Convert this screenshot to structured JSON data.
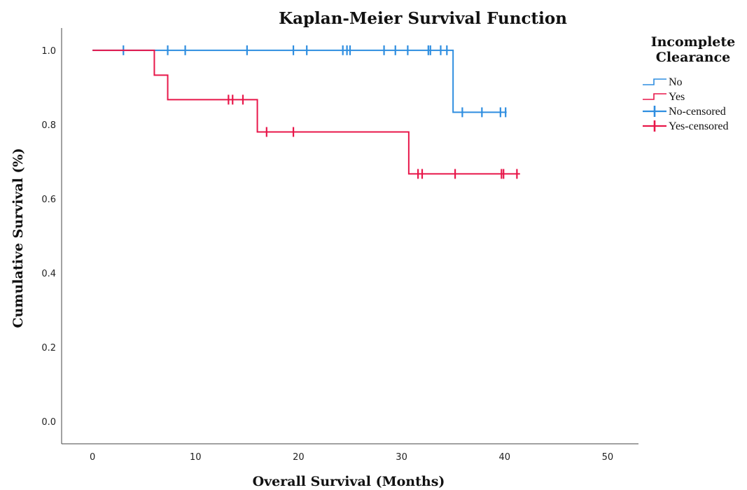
{
  "chart_data": {
    "type": "line",
    "title": "Kaplan-Meier Survival Function",
    "xlabel": "Overall Survival (Months)",
    "ylabel": "Cumulative Survival (%)",
    "xlim": [
      -3,
      53
    ],
    "ylim": [
      -0.06,
      1.06
    ],
    "x_ticks": [
      0,
      10,
      20,
      30,
      40,
      50
    ],
    "x_tick_labels": [
      "0",
      "10",
      "20",
      "30",
      "40",
      "50"
    ],
    "y_ticks": [
      0.0,
      0.2,
      0.4,
      0.6,
      0.8,
      1.0
    ],
    "y_tick_labels": [
      "0.0",
      "0.2",
      "0.4",
      "0.6",
      "0.8",
      "1.0"
    ],
    "grid": false,
    "legend": {
      "title_lines": [
        "Incomplete",
        "Clearance"
      ],
      "placement": "right",
      "entries": [
        {
          "label": "No",
          "kind": "line",
          "series": 0
        },
        {
          "label": "Yes",
          "kind": "line",
          "series": 1
        },
        {
          "label": "No-censored",
          "kind": "censor",
          "series": 0
        },
        {
          "label": "Yes-censored",
          "kind": "censor",
          "series": 1
        }
      ]
    },
    "series": [
      {
        "name": "No",
        "color": "#2f8ee0",
        "steps": [
          [
            0,
            1.0
          ],
          [
            35,
            0.833
          ],
          [
            40.2,
            0.833
          ]
        ],
        "censored": [
          [
            3,
            1.0
          ],
          [
            7.3,
            1.0
          ],
          [
            9,
            1.0
          ],
          [
            15,
            1.0
          ],
          [
            19.5,
            1.0
          ],
          [
            20.8,
            1.0
          ],
          [
            24.3,
            1.0
          ],
          [
            24.7,
            1.0
          ],
          [
            25,
            1.0
          ],
          [
            28.3,
            1.0
          ],
          [
            29.4,
            1.0
          ],
          [
            30.6,
            1.0
          ],
          [
            32.6,
            1.0
          ],
          [
            32.8,
            1.0
          ],
          [
            33.8,
            1.0
          ],
          [
            34.4,
            1.0
          ],
          [
            35.9,
            0.833
          ],
          [
            37.8,
            0.833
          ],
          [
            39.6,
            0.833
          ],
          [
            40.1,
            0.833
          ]
        ]
      },
      {
        "name": "Yes",
        "color": "#e8174a",
        "steps": [
          [
            0,
            1.0
          ],
          [
            6,
            0.933
          ],
          [
            7.3,
            0.867
          ],
          [
            16,
            0.78
          ],
          [
            30.7,
            0.667
          ],
          [
            41.5,
            0.667
          ]
        ],
        "censored": [
          [
            13.2,
            0.867
          ],
          [
            13.6,
            0.867
          ],
          [
            14.6,
            0.867
          ],
          [
            16.9,
            0.78
          ],
          [
            19.5,
            0.78
          ],
          [
            31.6,
            0.667
          ],
          [
            32.0,
            0.667
          ],
          [
            35.2,
            0.667
          ],
          [
            39.7,
            0.667
          ],
          [
            39.9,
            0.667
          ],
          [
            41.2,
            0.667
          ]
        ]
      }
    ]
  }
}
